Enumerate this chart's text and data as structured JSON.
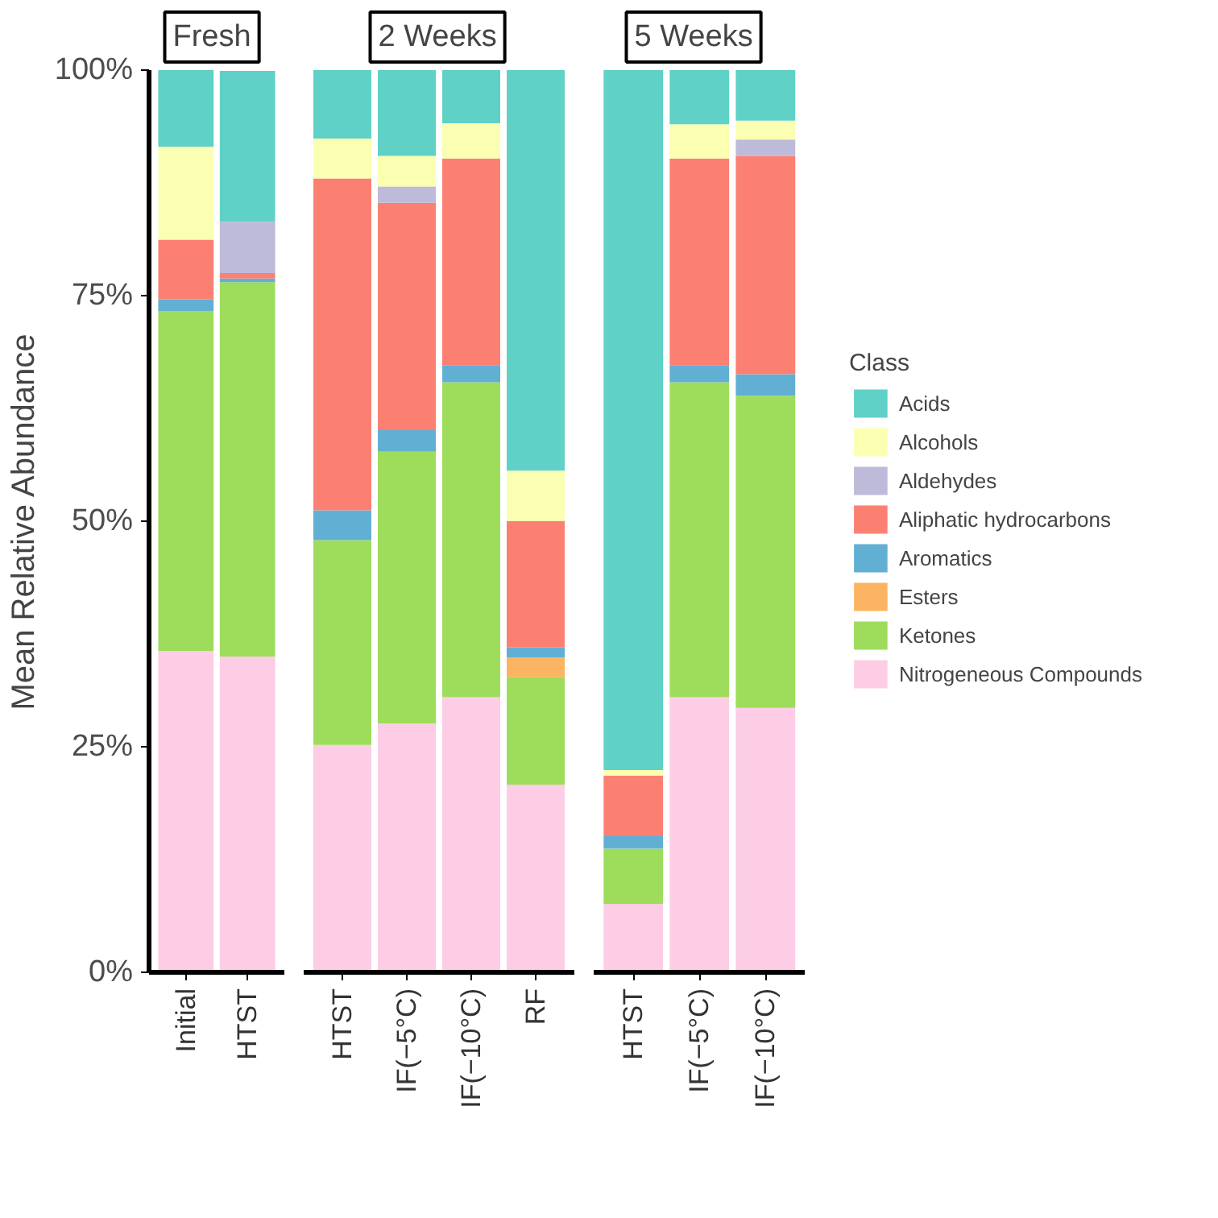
{
  "chart_data": [
    {
      "type": "bar",
      "stacked": true,
      "title": "Fresh",
      "ylabel": "Mean Relative Abundance",
      "categories": [
        "Initial",
        "HTST"
      ],
      "ylim": [
        0,
        100
      ],
      "yticks": [
        {
          "value": 0,
          "label": "0%"
        },
        {
          "value": 25,
          "label": "25%"
        },
        {
          "value": 50,
          "label": "50%"
        },
        {
          "value": 75,
          "label": "75%"
        },
        {
          "value": 100,
          "label": "100%"
        }
      ],
      "grid": false,
      "series": [
        {
          "color": "#fccde5",
          "values": [
            35.6,
            35.0
          ]
        },
        {
          "color": "#9edc5c",
          "values": [
            37.7,
            41.5
          ]
        },
        {
          "color": "#fdb462",
          "values": [
            0,
            0
          ]
        },
        {
          "color": "#62afd4",
          "values": [
            1.3,
            0.4
          ]
        },
        {
          "color": "#fb8072",
          "values": [
            6.6,
            0.6
          ]
        },
        {
          "color": "#bebada",
          "values": [
            0,
            5.7
          ]
        },
        {
          "color": "#faffb2",
          "values": [
            10.3,
            0
          ]
        },
        {
          "color": "#5fd1c6",
          "values": [
            8.5,
            16.7
          ]
        }
      ]
    },
    {
      "type": "bar",
      "stacked": true,
      "title": "2 Weeks",
      "categories": [
        "HTST",
        "IF(−5°C)",
        "IF(−10°C)",
        "RF"
      ],
      "ylim": [
        0,
        100
      ],
      "tick_labels": "x",
      "grid": false,
      "series": [
        {
          "color": "#fccde5",
          "values": [
            25.2,
            27.6,
            30.5,
            20.8
          ]
        },
        {
          "color": "#9edc5c",
          "values": [
            22.7,
            30.1,
            34.9,
            11.9
          ]
        },
        {
          "color": "#fdb462",
          "values": [
            0,
            0,
            0,
            2.2
          ]
        },
        {
          "color": "#62afd4",
          "values": [
            3.3,
            2.4,
            1.9,
            1.1
          ]
        },
        {
          "color": "#fb8072",
          "values": [
            36.8,
            25.2,
            22.9,
            14.0
          ]
        },
        {
          "color": "#bebada",
          "values": [
            0,
            1.8,
            0,
            0
          ]
        },
        {
          "color": "#faffb2",
          "values": [
            4.4,
            3.4,
            3.9,
            5.6
          ]
        },
        {
          "color": "#5fd1c6",
          "values": [
            7.6,
            9.5,
            5.9,
            44.4
          ]
        }
      ]
    },
    {
      "type": "bar",
      "stacked": true,
      "title": "5 Weeks",
      "categories": [
        "HTST",
        "IF(−5°C)",
        "IF(−10°C)"
      ],
      "ylim": [
        0,
        100
      ],
      "tick_labels": "x",
      "grid": false,
      "legend": "right",
      "legend_title": "Class",
      "series": [
        {
          "name": "Nitrogeneous Compounds",
          "color": "#fccde5",
          "values": [
            7.6,
            30.5,
            29.3
          ]
        },
        {
          "name": "Ketones",
          "color": "#9edc5c",
          "values": [
            6.1,
            34.9,
            34.6
          ]
        },
        {
          "name": "Esters",
          "color": "#fdb462",
          "values": [
            0,
            0,
            0
          ]
        },
        {
          "name": "Aromatics",
          "color": "#62afd4",
          "values": [
            1.4,
            1.9,
            2.4
          ]
        },
        {
          "name": "Aliphatic hydrocarbons",
          "color": "#fb8072",
          "values": [
            6.7,
            22.9,
            24.2
          ]
        },
        {
          "name": "Aldehydes",
          "color": "#bebada",
          "values": [
            0,
            0,
            1.8
          ]
        },
        {
          "name": "Alcohols",
          "color": "#faffb2",
          "values": [
            0.6,
            3.8,
            2.1
          ]
        },
        {
          "name": "Acids",
          "color": "#5fd1c6",
          "values": [
            77.6,
            6.0,
            5.6
          ]
        }
      ]
    }
  ]
}
